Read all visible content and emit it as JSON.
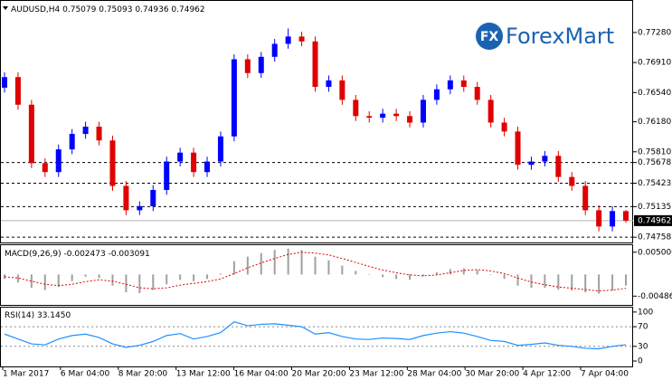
{
  "chart_data": [
    {
      "type": "candlestick",
      "title": "AUDUSD,H4",
      "open": [
        0.766,
        0.7673,
        0.7639,
        0.7567,
        0.7556,
        0.7584,
        0.7603,
        0.7612,
        0.7595,
        0.7539,
        0.7509,
        0.7514,
        0.7534,
        0.7569,
        0.758,
        0.7556,
        0.7569,
        0.76,
        0.7695,
        0.7678,
        0.7698,
        0.7714,
        0.7723,
        0.7717,
        0.7661,
        0.7669,
        0.7645,
        0.7625,
        0.7623,
        0.7628,
        0.7625,
        0.7617,
        0.7645,
        0.7658,
        0.7669,
        0.7661,
        0.7645,
        0.7617,
        0.7606,
        0.7565,
        0.7569,
        0.7576,
        0.755,
        0.7539,
        0.7509,
        0.7489,
        0.75079
      ],
      "high": [
        0.7679,
        0.7679,
        0.7645,
        0.7573,
        0.759,
        0.7609,
        0.7618,
        0.7618,
        0.7601,
        0.7545,
        0.752,
        0.754,
        0.7575,
        0.7586,
        0.7586,
        0.7575,
        0.7606,
        0.7701,
        0.7701,
        0.7704,
        0.772,
        0.7733,
        0.7729,
        0.7723,
        0.7675,
        0.7675,
        0.7651,
        0.7631,
        0.7634,
        0.7634,
        0.7631,
        0.7651,
        0.7664,
        0.7675,
        0.7675,
        0.7667,
        0.7651,
        0.7623,
        0.7612,
        0.7575,
        0.7582,
        0.7582,
        0.7556,
        0.7545,
        0.7515,
        0.7514,
        0.75093
      ],
      "low": [
        0.7654,
        0.7633,
        0.7561,
        0.755,
        0.755,
        0.7578,
        0.7597,
        0.7589,
        0.7533,
        0.7503,
        0.7503,
        0.7508,
        0.7528,
        0.7563,
        0.755,
        0.755,
        0.7563,
        0.7594,
        0.7672,
        0.7672,
        0.7692,
        0.7708,
        0.7711,
        0.7655,
        0.7655,
        0.7639,
        0.7619,
        0.7617,
        0.7617,
        0.7619,
        0.7611,
        0.7611,
        0.7639,
        0.7652,
        0.7655,
        0.7639,
        0.7611,
        0.76,
        0.7559,
        0.7559,
        0.7563,
        0.7544,
        0.7533,
        0.7503,
        0.7483,
        0.7483,
        0.74936
      ],
      "close": [
        0.7673,
        0.7639,
        0.7567,
        0.7556,
        0.7584,
        0.7603,
        0.7612,
        0.7595,
        0.7539,
        0.7509,
        0.7514,
        0.7534,
        0.7569,
        0.758,
        0.7556,
        0.7569,
        0.76,
        0.7695,
        0.7678,
        0.7698,
        0.7714,
        0.7723,
        0.7717,
        0.7661,
        0.7669,
        0.7645,
        0.7625,
        0.7623,
        0.7628,
        0.7625,
        0.7617,
        0.7645,
        0.7658,
        0.7669,
        0.7661,
        0.7645,
        0.7617,
        0.7606,
        0.7565,
        0.7569,
        0.7576,
        0.755,
        0.7539,
        0.7509,
        0.7489,
        0.7508,
        0.74962
      ],
      "up_color": "#0000ff",
      "down_color": "#e00000",
      "ylim": [
        0.74693,
        0.77669
      ],
      "yticks": [
        {
          "value": 0.7728,
          "label": "0.77280"
        },
        {
          "value": 0.7691,
          "label": "0.76910"
        },
        {
          "value": 0.7654,
          "label": "0.76540"
        },
        {
          "value": 0.7618,
          "label": "0.76180"
        },
        {
          "value": 0.7581,
          "label": "0.75810"
        }
      ],
      "levels": [
        {
          "value": 0.75678,
          "label": "0.75678"
        },
        {
          "value": 0.75423,
          "label": "0.75423"
        },
        {
          "value": 0.75135,
          "label": "0.75135"
        },
        {
          "value": 0.74758,
          "label": "0.74758"
        }
      ]
    },
    {
      "type": "macd",
      "title": "MACD(9,26,9)",
      "histogram": [
        -0.001,
        -0.0018,
        -0.003,
        -0.0035,
        -0.0028,
        -0.0015,
        -0.0005,
        -0.0008,
        -0.0025,
        -0.004,
        -0.0042,
        -0.0035,
        -0.0022,
        -0.0012,
        -0.0015,
        -0.001,
        0.0002,
        0.003,
        0.004,
        0.0048,
        0.0055,
        0.0058,
        0.0055,
        0.004,
        0.0032,
        0.002,
        0.0008,
        0.0,
        -0.0006,
        -0.001,
        -0.0012,
        -0.0004,
        0.0005,
        0.0012,
        0.0014,
        0.001,
        0.0,
        -0.001,
        -0.0025,
        -0.003,
        -0.003,
        -0.0034,
        -0.0036,
        -0.004,
        -0.0043,
        -0.0036,
        -0.002473
      ],
      "signal": [
        -0.0005,
        -0.0008,
        -0.0015,
        -0.0022,
        -0.0025,
        -0.0022,
        -0.0016,
        -0.0012,
        -0.0015,
        -0.0022,
        -0.003,
        -0.0032,
        -0.003,
        -0.0024,
        -0.002,
        -0.0016,
        -0.001,
        0.0002,
        0.0015,
        0.0026,
        0.0036,
        0.0045,
        0.005,
        0.0048,
        0.0044,
        0.0036,
        0.0027,
        0.0018,
        0.001,
        0.0004,
        -0.0001,
        -0.0003,
        -0.0001,
        0.0004,
        0.0009,
        0.0011,
        0.0008,
        0.0002,
        -0.0008,
        -0.0017,
        -0.0023,
        -0.0028,
        -0.0031,
        -0.0034,
        -0.0037,
        -0.0035,
        -0.003091
      ],
      "histogram_color": "#a0a0a0",
      "signal_color": "#e00000",
      "ylim": [
        -0.00683,
        0.00658
      ],
      "yticks": [
        {
          "value": 0.005,
          "label": "0.005000"
        },
        {
          "value": -0.004861,
          "label": "-0.004861"
        }
      ]
    },
    {
      "type": "line",
      "title": "RSI(14)",
      "values": [
        55,
        45,
        35,
        33,
        45,
        52,
        55,
        48,
        35,
        28,
        32,
        40,
        52,
        56,
        45,
        50,
        58,
        80,
        72,
        75,
        76,
        73,
        70,
        55,
        58,
        50,
        45,
        44,
        47,
        46,
        44,
        52,
        57,
        60,
        57,
        50,
        42,
        40,
        32,
        34,
        37,
        32,
        30,
        26,
        25,
        30,
        33.145
      ],
      "value_labels": [
        null,
        null,
        null,
        null,
        null,
        null,
        null,
        null,
        null,
        null,
        null,
        null,
        null,
        null,
        null,
        null,
        null,
        null,
        null,
        null,
        null,
        null,
        null,
        null,
        null,
        null,
        null,
        null,
        null,
        null,
        null,
        null,
        null,
        null,
        null,
        null,
        null,
        null,
        null,
        null,
        null,
        null,
        null,
        null,
        null,
        null,
        "33.1450"
      ],
      "color": "#1e90ff",
      "ylim": [
        -11,
        109
      ],
      "yticks": [
        100,
        70,
        30,
        0
      ],
      "levels": [
        70,
        30
      ]
    }
  ],
  "time_axis": [
    "1 Mar 2017",
    "6 Mar 04:00",
    "8 Mar 20:00",
    "13 Mar 12:00",
    "16 Mar 04:00",
    "20 Mar 20:00",
    "23 Mar 12:00",
    "28 Mar 04:00",
    "30 Mar 20:00",
    "4 Apr 12:00",
    "7 Apr 04:00"
  ],
  "logo": {
    "icon": "FX",
    "text": "ForexMart"
  }
}
